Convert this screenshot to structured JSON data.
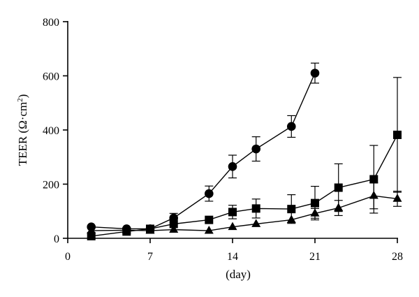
{
  "chart_data": {
    "type": "line",
    "xlabel": "(day)",
    "ylabel_main": "TEER (Ω·cm",
    "ylabel_sup": "2",
    "ylabel_close": ")",
    "xlim": [
      0,
      28
    ],
    "ylim": [
      0,
      800
    ],
    "xticks": [
      0,
      7,
      14,
      21,
      28
    ],
    "yticks": [
      0,
      200,
      400,
      600,
      800
    ],
    "grid": false,
    "series": [
      {
        "marker": "circle",
        "x": [
          2,
          5,
          7,
          9,
          12,
          14,
          16,
          19,
          21
        ],
        "y": [
          42,
          35,
          35,
          75,
          165,
          265,
          330,
          413,
          610
        ],
        "err_up": [
          0,
          0,
          0,
          17,
          28,
          42,
          45,
          40,
          37
        ],
        "err_down": [
          0,
          0,
          0,
          0,
          28,
          42,
          45,
          40,
          37
        ]
      },
      {
        "marker": "square",
        "x": [
          2,
          5,
          7,
          9,
          12,
          14,
          16,
          19,
          21,
          23,
          26,
          28
        ],
        "y": [
          8,
          25,
          35,
          53,
          68,
          97,
          110,
          108,
          130,
          187,
          218,
          382
        ],
        "err_up": [
          0,
          0,
          0,
          0,
          0,
          25,
          35,
          53,
          62,
          88,
          125,
          212
        ],
        "err_down": [
          0,
          0,
          0,
          0,
          0,
          25,
          35,
          53,
          62,
          88,
          125,
          212
        ]
      },
      {
        "marker": "triangle",
        "x": [
          2,
          5,
          7,
          9,
          12,
          14,
          16,
          19,
          21,
          23,
          26,
          28
        ],
        "y": [
          28,
          30,
          28,
          32,
          28,
          42,
          53,
          68,
          92,
          112,
          157,
          146
        ],
        "err_up": [
          0,
          0,
          0,
          0,
          0,
          0,
          0,
          0,
          18,
          28,
          48,
          28
        ],
        "err_down": [
          0,
          0,
          0,
          0,
          0,
          0,
          0,
          0,
          18,
          28,
          48,
          28
        ]
      }
    ]
  }
}
